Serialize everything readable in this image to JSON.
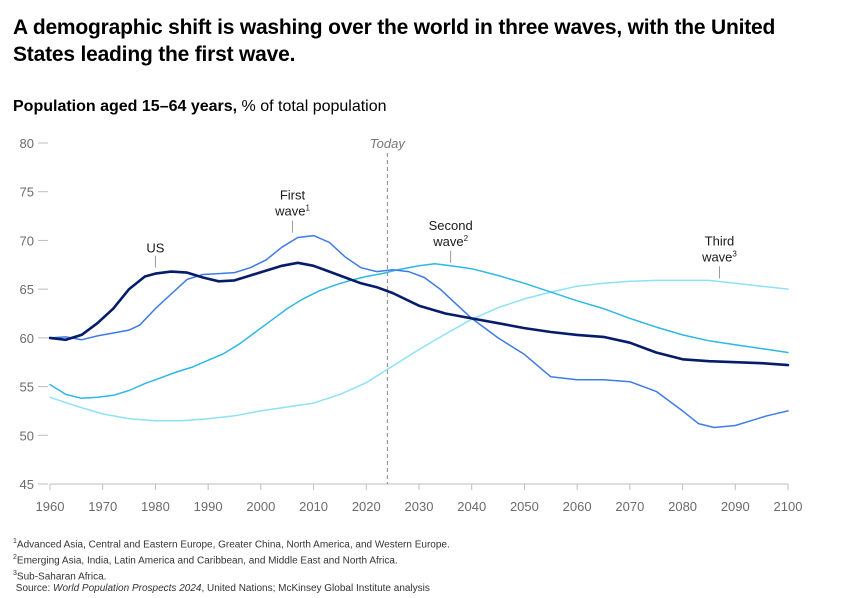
{
  "title": "A demographic shift is washing over the world in three waves, with the United States leading the first wave.",
  "subtitle_bold": "Population aged 15–64 years,",
  "subtitle_rest": " % of total population",
  "footnotes": {
    "n1_mark": "1",
    "n1": "Advanced Asia, Central and Eastern Europe, Greater China, North America, and Western Europe.",
    "n2_mark": "2",
    "n2": "Emerging Asia, India, Latin America and Caribbean, and Middle East and North Africa.",
    "n3_mark": "3",
    "n3": "Sub-Saharan Africa.",
    "source_prefix": "Source: ",
    "source_italic": "World Population Prospects 2024",
    "source_rest": ", United Nations; McKinsey Global Institute analysis"
  },
  "chart_data": {
    "type": "line",
    "title": "Population aged 15–64 years",
    "ylabel": "% of total population",
    "xlim": [
      1960,
      2100
    ],
    "ylim": [
      45,
      80
    ],
    "x_ticks": [
      1960,
      1970,
      1980,
      1990,
      2000,
      2010,
      2020,
      2030,
      2040,
      2050,
      2060,
      2070,
      2080,
      2090,
      2100
    ],
    "y_ticks": [
      45,
      50,
      55,
      60,
      65,
      70,
      75,
      80
    ],
    "grid": false,
    "today": {
      "x": 2024,
      "label": "Today"
    },
    "colors": {
      "us": "#051c6b",
      "first": "#3e7be8",
      "second": "#2eb8e6",
      "third": "#8ee1f7"
    },
    "annotations": [
      {
        "text": "US",
        "x": 1980,
        "y": 67.0
      },
      {
        "text": "First",
        "text2": "wave",
        "sup": "1",
        "x": 2006,
        "y": 70.6
      },
      {
        "text": "Second",
        "text2": "wave",
        "sup": "2",
        "x": 2036,
        "y": 67.5
      },
      {
        "text": "Third",
        "text2": "wave",
        "sup": "3",
        "x": 2087,
        "y": 65.9
      }
    ],
    "series": [
      {
        "key": "us",
        "x": [
          1960,
          1963,
          1966,
          1969,
          1972,
          1975,
          1978,
          1980,
          1983,
          1986,
          1989,
          1992,
          1995,
          1998,
          2001,
          2004,
          2007,
          2010,
          2013,
          2016,
          2019,
          2022,
          2025,
          2030,
          2035,
          2040,
          2045,
          2050,
          2055,
          2060,
          2065,
          2070,
          2075,
          2080,
          2085,
          2090,
          2095,
          2100
        ],
        "values": [
          60.0,
          59.8,
          60.3,
          61.5,
          63.0,
          65.0,
          66.3,
          66.6,
          66.8,
          66.7,
          66.2,
          65.8,
          65.9,
          66.4,
          66.9,
          67.4,
          67.7,
          67.4,
          66.8,
          66.2,
          65.6,
          65.2,
          64.6,
          63.3,
          62.5,
          62.0,
          61.5,
          61.0,
          60.6,
          60.3,
          60.1,
          59.5,
          58.5,
          57.8,
          57.6,
          57.5,
          57.4,
          57.2
        ]
      },
      {
        "key": "first",
        "x": [
          1960,
          1963,
          1966,
          1969,
          1972,
          1975,
          1977,
          1980,
          1983,
          1986,
          1989,
          1992,
          1995,
          1998,
          2001,
          2004,
          2007,
          2010,
          2013,
          2016,
          2019,
          2022,
          2025,
          2028,
          2031,
          2034,
          2037,
          2040,
          2045,
          2050,
          2055,
          2060,
          2065,
          2070,
          2075,
          2080,
          2083,
          2086,
          2090,
          2093,
          2096,
          2100
        ],
        "values": [
          60.0,
          60.1,
          59.8,
          60.2,
          60.5,
          60.8,
          61.3,
          63.0,
          64.5,
          66.0,
          66.5,
          66.6,
          66.7,
          67.2,
          68.0,
          69.3,
          70.3,
          70.5,
          69.8,
          68.3,
          67.2,
          66.8,
          67.0,
          66.8,
          66.2,
          65.0,
          63.5,
          62.0,
          60.0,
          58.3,
          56.0,
          55.7,
          55.7,
          55.5,
          54.5,
          52.5,
          51.2,
          50.8,
          51.0,
          51.5,
          52.0,
          52.5
        ]
      },
      {
        "key": "second",
        "x": [
          1960,
          1963,
          1966,
          1969,
          1972,
          1975,
          1978,
          1981,
          1984,
          1987,
          1990,
          1993,
          1996,
          1999,
          2002,
          2005,
          2008,
          2011,
          2014,
          2017,
          2020,
          2023,
          2026,
          2030,
          2033,
          2036,
          2040,
          2045,
          2050,
          2055,
          2060,
          2065,
          2070,
          2075,
          2080,
          2085,
          2090,
          2095,
          2100
        ],
        "values": [
          55.2,
          54.2,
          53.8,
          53.9,
          54.1,
          54.6,
          55.3,
          55.9,
          56.5,
          57.0,
          57.7,
          58.4,
          59.4,
          60.6,
          61.8,
          63.0,
          64.0,
          64.8,
          65.4,
          65.9,
          66.3,
          66.6,
          67.0,
          67.4,
          67.6,
          67.4,
          67.1,
          66.4,
          65.6,
          64.7,
          63.8,
          63.0,
          62.0,
          61.1,
          60.3,
          59.7,
          59.3,
          58.9,
          58.5
        ]
      },
      {
        "key": "third",
        "x": [
          1960,
          1965,
          1970,
          1975,
          1980,
          1985,
          1990,
          1995,
          2000,
          2005,
          2010,
          2015,
          2020,
          2025,
          2030,
          2035,
          2040,
          2045,
          2050,
          2055,
          2060,
          2065,
          2070,
          2075,
          2080,
          2085,
          2090,
          2095,
          2100
        ],
        "values": [
          53.9,
          53.0,
          52.2,
          51.7,
          51.5,
          51.5,
          51.7,
          52.0,
          52.5,
          52.9,
          53.3,
          54.2,
          55.4,
          57.1,
          58.8,
          60.4,
          61.9,
          63.1,
          64.0,
          64.7,
          65.3,
          65.6,
          65.8,
          65.9,
          65.9,
          65.9,
          65.6,
          65.3,
          65.0
        ]
      }
    ]
  }
}
